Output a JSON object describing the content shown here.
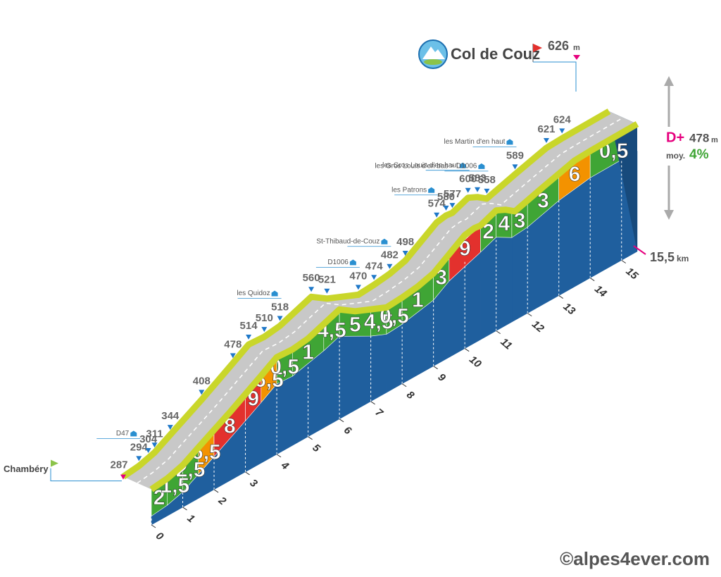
{
  "chart_data": {
    "type": "elevation-profile",
    "title": "Col de Couz",
    "start": "Chambéry",
    "elevation_unit": "m",
    "km": [
      0,
      0.5,
      0.8,
      1,
      1.5,
      2.5,
      3.5,
      4,
      4.5,
      5,
      6,
      6.5,
      7.5,
      8,
      8.5,
      9,
      10,
      10.3,
      10.5,
      11,
      11.3,
      11.6,
      12.5,
      13.5,
      14,
      15.5
    ],
    "elevation": [
      287,
      294,
      304,
      311,
      344,
      408,
      478,
      514,
      510,
      518,
      560,
      521,
      470,
      474,
      482,
      498,
      574,
      580,
      577,
      600,
      583,
      558,
      589,
      621,
      624,
      626
    ],
    "places": [
      null,
      "D47",
      null,
      null,
      null,
      null,
      null,
      null,
      null,
      "les Quidoz",
      null,
      null,
      "D1006",
      null,
      "St-Thibaud-de-Couz",
      null,
      "les Patrons",
      null,
      null,
      "les Gros Louis d'en haut",
      null,
      "les Gros Louis d'en bas > D1006",
      "les Martin d'en haut",
      null,
      null,
      null
    ],
    "segment_bounds": [
      0,
      0.5,
      1,
      1.5,
      2,
      3,
      3.5,
      4,
      4.5,
      5.5,
      6,
      7,
      7.5,
      8,
      9,
      9.5,
      10.5,
      11,
      11.5,
      12,
      13,
      14,
      15.5
    ],
    "gradients": [
      2,
      1.5,
      2.5,
      6.5,
      8,
      9,
      6.5,
      0.5,
      1,
      4.5,
      5,
      4.5,
      0.5,
      1,
      3,
      9,
      2,
      4,
      3,
      3,
      6,
      0.5
    ],
    "gradient_labels": [
      "2",
      "1,5",
      "2,5",
      "6,5",
      "8",
      "9",
      "6,5",
      "0,5",
      "1",
      "4,5",
      "5",
      "4,5",
      "0,5",
      "1",
      "3",
      "9",
      "2",
      "4",
      "3",
      "3",
      "6",
      "0,5"
    ],
    "gradient_colors": [
      "#3fa535",
      "#3fa535",
      "#3fa535",
      "#f39200",
      "#e3312d",
      "#e3312d",
      "#f39200",
      "#3fa535",
      "#3fa535",
      "#3fa535",
      "#3fa535",
      "#3fa535",
      "#3fa535",
      "#3fa535",
      "#3fa535",
      "#e3312d",
      "#3fa535",
      "#3fa535",
      "#3fa535",
      "#3fa535",
      "#f39200",
      "#3fa535"
    ],
    "xlim": [
      0,
      15.5
    ],
    "xticks": [
      0,
      1,
      2,
      3,
      4,
      5,
      6,
      7,
      8,
      9,
      10,
      11,
      12,
      13,
      14,
      15
    ],
    "total_distance": {
      "value": 15.5,
      "label": "15,5"
    },
    "distance_unit": "km",
    "climb": {
      "label": "D+",
      "value": 478,
      "unit": "m"
    },
    "average": {
      "label": "moy.",
      "value": 4,
      "value_label": "4%"
    },
    "credit": "©alpes4ever.com"
  }
}
